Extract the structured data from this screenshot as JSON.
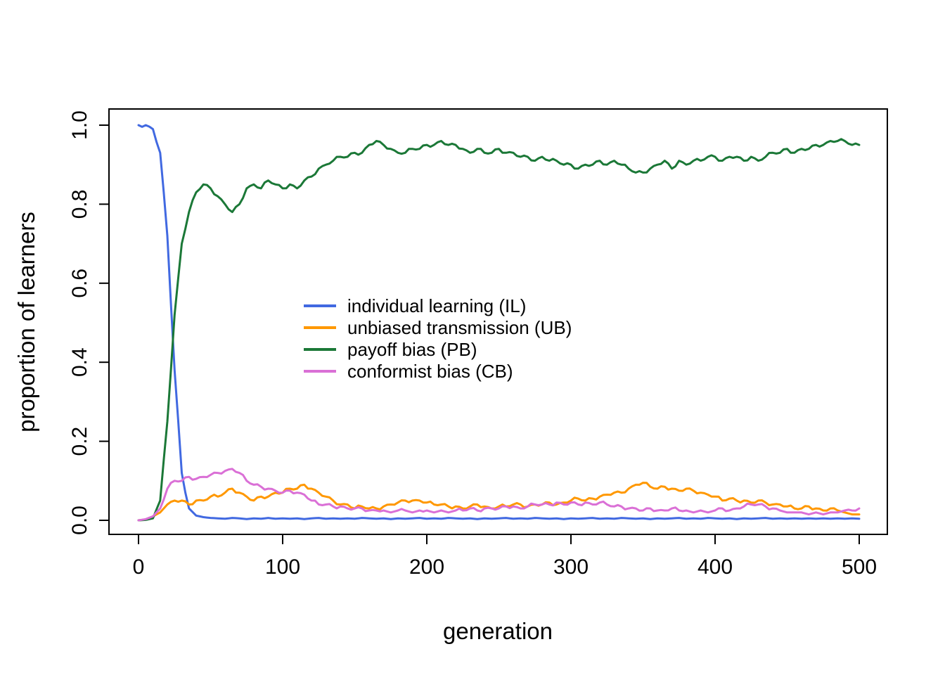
{
  "figure": {
    "background": "#ffffff",
    "axis_color": "#000000"
  },
  "chart_data": {
    "type": "line",
    "title": "",
    "xlabel": "generation",
    "ylabel": "proportion of learners",
    "xlim": [
      0,
      500
    ],
    "ylim": [
      0.0,
      1.0
    ],
    "x_ticks": [
      0,
      100,
      200,
      300,
      400,
      500
    ],
    "y_ticks": [
      0.0,
      0.2,
      0.4,
      0.6,
      0.8,
      1.0
    ],
    "grid": false,
    "legend_position": "inside-center-left",
    "x": [
      0,
      5,
      10,
      15,
      20,
      25,
      30,
      35,
      40,
      45,
      50,
      55,
      60,
      65,
      70,
      75,
      80,
      85,
      90,
      95,
      100,
      105,
      110,
      115,
      120,
      125,
      130,
      135,
      140,
      145,
      150,
      155,
      160,
      165,
      170,
      175,
      180,
      185,
      190,
      195,
      200,
      205,
      210,
      215,
      220,
      225,
      230,
      235,
      240,
      245,
      250,
      255,
      260,
      265,
      270,
      275,
      280,
      285,
      290,
      295,
      300,
      305,
      310,
      315,
      320,
      325,
      330,
      335,
      340,
      345,
      350,
      355,
      360,
      365,
      370,
      375,
      380,
      385,
      390,
      395,
      400,
      405,
      410,
      415,
      420,
      425,
      430,
      435,
      440,
      445,
      450,
      455,
      460,
      465,
      470,
      475,
      480,
      485,
      490,
      495,
      500
    ],
    "series": [
      {
        "name": "individual learning (IL)",
        "short": "IL",
        "color": "#4169e1",
        "values": [
          1.0,
          1.0,
          0.99,
          0.93,
          0.72,
          0.38,
          0.12,
          0.03,
          0.012,
          0.008,
          0.006,
          0.005,
          0.004,
          0.006,
          0.005,
          0.003,
          0.005,
          0.004,
          0.006,
          0.004,
          0.005,
          0.004,
          0.005,
          0.003,
          0.005,
          0.006,
          0.004,
          0.005,
          0.004,
          0.005,
          0.004,
          0.006,
          0.005,
          0.004,
          0.005,
          0.003,
          0.005,
          0.004,
          0.005,
          0.006,
          0.004,
          0.005,
          0.004,
          0.006,
          0.005,
          0.004,
          0.005,
          0.003,
          0.005,
          0.004,
          0.005,
          0.006,
          0.004,
          0.005,
          0.004,
          0.006,
          0.005,
          0.004,
          0.005,
          0.003,
          0.005,
          0.004,
          0.005,
          0.006,
          0.004,
          0.005,
          0.004,
          0.006,
          0.005,
          0.004,
          0.005,
          0.003,
          0.005,
          0.004,
          0.005,
          0.006,
          0.004,
          0.005,
          0.004,
          0.006,
          0.005,
          0.004,
          0.005,
          0.003,
          0.005,
          0.004,
          0.005,
          0.006,
          0.004,
          0.005,
          0.004,
          0.005,
          0.004,
          0.005,
          0.004,
          0.005,
          0.004,
          0.005,
          0.004,
          0.005,
          0.004
        ]
      },
      {
        "name": "unbiased transmission (UB)",
        "short": "UB",
        "color": "#ff9800",
        "values": [
          0,
          0.002,
          0.01,
          0.02,
          0.04,
          0.05,
          0.05,
          0.04,
          0.05,
          0.05,
          0.06,
          0.06,
          0.07,
          0.08,
          0.07,
          0.06,
          0.05,
          0.06,
          0.06,
          0.07,
          0.07,
          0.08,
          0.08,
          0.09,
          0.08,
          0.07,
          0.06,
          0.05,
          0.04,
          0.04,
          0.03,
          0.035,
          0.03,
          0.03,
          0.035,
          0.04,
          0.045,
          0.05,
          0.05,
          0.05,
          0.045,
          0.04,
          0.04,
          0.035,
          0.035,
          0.03,
          0.035,
          0.04,
          0.035,
          0.03,
          0.035,
          0.035,
          0.04,
          0.04,
          0.035,
          0.04,
          0.04,
          0.045,
          0.04,
          0.045,
          0.05,
          0.055,
          0.05,
          0.055,
          0.06,
          0.065,
          0.07,
          0.07,
          0.08,
          0.09,
          0.095,
          0.085,
          0.08,
          0.085,
          0.08,
          0.075,
          0.08,
          0.075,
          0.07,
          0.065,
          0.06,
          0.05,
          0.055,
          0.05,
          0.05,
          0.045,
          0.05,
          0.045,
          0.04,
          0.04,
          0.035,
          0.03,
          0.03,
          0.035,
          0.03,
          0.025,
          0.03,
          0.025,
          0.02,
          0.015,
          0.015
        ]
      },
      {
        "name": "payoff bias (PB)",
        "short": "PB",
        "color": "#1b7837",
        "values": [
          0,
          0.001,
          0.005,
          0.05,
          0.25,
          0.52,
          0.7,
          0.78,
          0.83,
          0.85,
          0.84,
          0.82,
          0.8,
          0.78,
          0.8,
          0.84,
          0.85,
          0.84,
          0.86,
          0.85,
          0.84,
          0.85,
          0.84,
          0.86,
          0.87,
          0.89,
          0.9,
          0.91,
          0.92,
          0.92,
          0.93,
          0.93,
          0.95,
          0.96,
          0.95,
          0.94,
          0.93,
          0.93,
          0.94,
          0.94,
          0.95,
          0.95,
          0.96,
          0.95,
          0.95,
          0.94,
          0.93,
          0.94,
          0.93,
          0.93,
          0.94,
          0.93,
          0.93,
          0.92,
          0.92,
          0.91,
          0.92,
          0.91,
          0.91,
          0.9,
          0.9,
          0.89,
          0.9,
          0.9,
          0.91,
          0.9,
          0.91,
          0.9,
          0.89,
          0.88,
          0.88,
          0.89,
          0.9,
          0.91,
          0.89,
          0.91,
          0.9,
          0.91,
          0.91,
          0.92,
          0.92,
          0.91,
          0.92,
          0.92,
          0.91,
          0.92,
          0.91,
          0.92,
          0.93,
          0.93,
          0.94,
          0.93,
          0.94,
          0.94,
          0.95,
          0.95,
          0.96,
          0.96,
          0.96,
          0.95,
          0.95
        ]
      },
      {
        "name": "conformist bias (CB)",
        "short": "CB",
        "color": "#da70d6",
        "values": [
          0,
          0.003,
          0.01,
          0.03,
          0.08,
          0.1,
          0.1,
          0.11,
          0.105,
          0.11,
          0.115,
          0.12,
          0.125,
          0.13,
          0.12,
          0.1,
          0.09,
          0.085,
          0.08,
          0.075,
          0.07,
          0.075,
          0.07,
          0.065,
          0.05,
          0.04,
          0.04,
          0.035,
          0.035,
          0.03,
          0.03,
          0.03,
          0.025,
          0.025,
          0.025,
          0.02,
          0.025,
          0.025,
          0.02,
          0.025,
          0.025,
          0.02,
          0.025,
          0.02,
          0.025,
          0.025,
          0.03,
          0.025,
          0.03,
          0.03,
          0.03,
          0.035,
          0.035,
          0.03,
          0.035,
          0.04,
          0.04,
          0.04,
          0.045,
          0.04,
          0.045,
          0.04,
          0.045,
          0.04,
          0.045,
          0.04,
          0.035,
          0.035,
          0.03,
          0.03,
          0.025,
          0.03,
          0.025,
          0.025,
          0.03,
          0.025,
          0.025,
          0.02,
          0.025,
          0.02,
          0.025,
          0.03,
          0.025,
          0.03,
          0.035,
          0.04,
          0.04,
          0.035,
          0.03,
          0.025,
          0.02,
          0.02,
          0.02,
          0.015,
          0.02,
          0.015,
          0.02,
          0.02,
          0.025,
          0.025,
          0.03
        ]
      }
    ]
  }
}
